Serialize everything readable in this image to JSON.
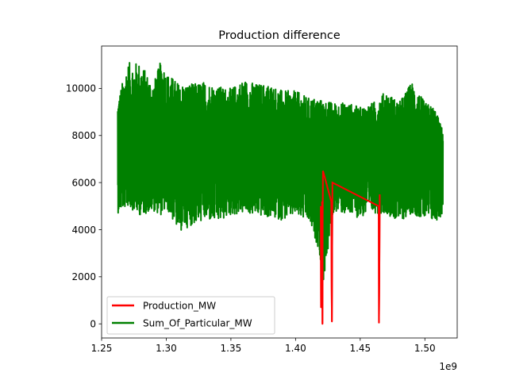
{
  "chart_data": {
    "type": "line",
    "title": "Production difference",
    "xlabel": "",
    "ylabel": "",
    "x_offset_label": "1e9",
    "xlim": [
      1.25,
      1.525
    ],
    "ylim": [
      -600,
      11800
    ],
    "xticks": [
      1.25,
      1.3,
      1.35,
      1.4,
      1.45,
      1.5
    ],
    "xtick_labels": [
      "1.25",
      "1.30",
      "1.35",
      "1.40",
      "1.45",
      "1.50"
    ],
    "yticks": [
      0,
      2000,
      4000,
      6000,
      8000,
      10000
    ],
    "ytick_labels": [
      "0",
      "2000",
      "4000",
      "6000",
      "8000",
      "10000"
    ],
    "grid": false,
    "legend_position": "lower-left",
    "series": [
      {
        "name": "Production_MW",
        "color": "#ff0000",
        "x": [
          1.4195,
          1.4197,
          1.42,
          1.4203,
          1.4205,
          1.4208,
          1.421,
          1.4212,
          1.4276,
          1.4279,
          1.4281,
          1.4283,
          1.4285,
          1.4643,
          1.4645,
          1.4648,
          1.4651
        ],
        "y": [
          5000,
          700,
          3000,
          900,
          5200,
          0,
          4600,
          6500,
          5200,
          1500,
          100,
          3000,
          6000,
          5000,
          50,
          2000,
          5500
        ]
      },
      {
        "name": "Sum_Of_Particular_MW",
        "color": "#008000",
        "x_range": [
          1.2625,
          1.514
        ],
        "envelope_x": [
          1.2625,
          1.27,
          1.28,
          1.29,
          1.2965,
          1.3,
          1.31,
          1.32,
          1.33,
          1.34,
          1.35,
          1.36,
          1.37,
          1.38,
          1.39,
          1.4,
          1.41,
          1.4185,
          1.42,
          1.43,
          1.44,
          1.45,
          1.46,
          1.47,
          1.48,
          1.49,
          1.5,
          1.5075,
          1.514
        ],
        "envelope_high": [
          9500,
          11100,
          11100,
          10200,
          11300,
          10700,
          10200,
          10200,
          10300,
          10100,
          10000,
          10400,
          10200,
          10200,
          9900,
          9900,
          9600,
          9600,
          9500,
          9400,
          9400,
          9200,
          9400,
          9900,
          9400,
          10300,
          9400,
          9200,
          8200
        ],
        "envelope_low": [
          4700,
          5000,
          4600,
          4800,
          4600,
          4900,
          3900,
          4200,
          4400,
          4300,
          4600,
          4700,
          4600,
          4500,
          4400,
          4600,
          4300,
          3100,
          1200,
          4800,
          4600,
          4500,
          4700,
          4700,
          4300,
          4700,
          4400,
          4300,
          4600
        ],
        "center": 7200
      }
    ]
  }
}
